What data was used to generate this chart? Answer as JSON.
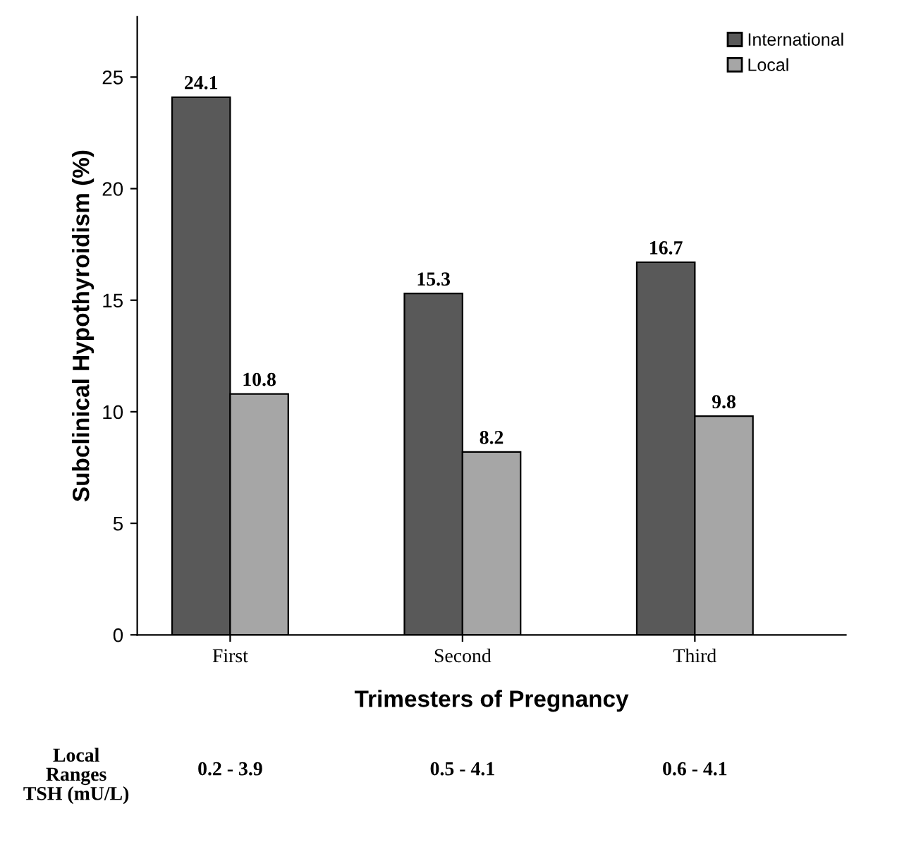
{
  "chart_data": {
    "type": "bar",
    "xlabel": "Trimesters of Pregnancy",
    "ylabel": "Subclinical Hypothyroidism (%)",
    "categories": [
      "First",
      "Second",
      "Third"
    ],
    "series": [
      {
        "name": "International",
        "color": "#595959",
        "values": [
          24.1,
          15.3,
          16.7
        ]
      },
      {
        "name": "Local",
        "color": "#a6a6a6",
        "values": [
          10.8,
          8.2,
          9.8
        ]
      }
    ],
    "ylim": [
      0,
      27.7
    ],
    "yticks": [
      0,
      5,
      10,
      15,
      20,
      25
    ],
    "grid": false,
    "legend": "top right",
    "data_labels": true,
    "annotations": [
      "Local\nRanges\nTSH (mU/L)",
      "0.2 - 3.9",
      "0.5 - 4.1",
      "0.6 - 4.1"
    ]
  }
}
